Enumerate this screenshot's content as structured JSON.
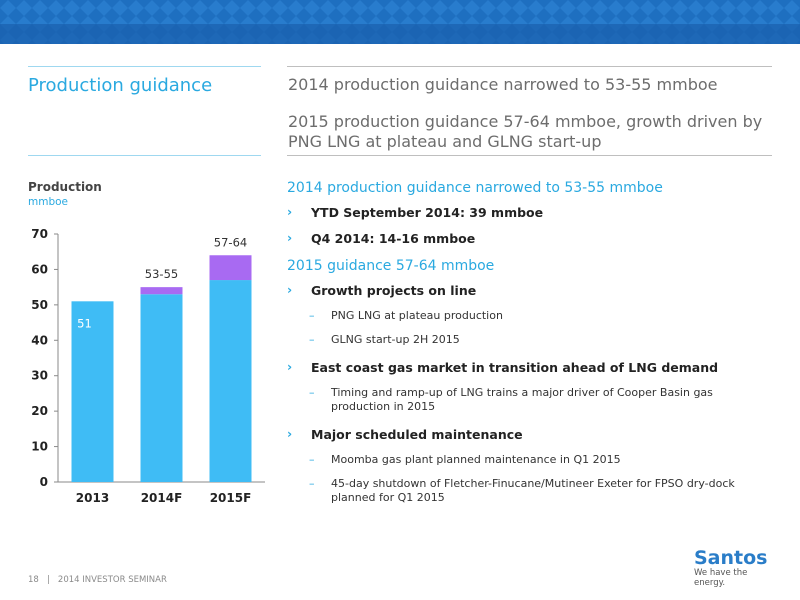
{
  "page": {
    "section_title": "Production guidance",
    "headline_1": "2014 production guidance narrowed to 53-55 mmboe",
    "headline_2": "2015 production guidance 57-64 mmboe, growth driven by PNG LNG at plateau and GLNG start-up"
  },
  "content": {
    "heading_2014": "2014 production guidance narrowed to 53-55 mmboe",
    "bullet_ytd": "YTD September 2014: 39 mmboe",
    "bullet_q4": "Q4 2014: 14-16 mmboe",
    "heading_2015": "2015 guidance 57-64 mmboe",
    "bullet_growth": "Growth projects on line",
    "sub_png": "PNG LNG at plateau production",
    "sub_glng": "GLNG start-up 2H 2015",
    "bullet_east": "East coast gas market in transition ahead of LNG demand",
    "sub_timing": "Timing and ramp-up of LNG trains a major driver of Cooper Basin gas production in 2015",
    "bullet_maint": "Major scheduled maintenance",
    "sub_moomba": "Moomba gas plant planned maintenance in Q1 2015",
    "sub_shutdown": "45-day shutdown of Fletcher-Finucane/Mutineer Exeter for FPSO dry-dock planned for  Q1 2015",
    "arrow_glyph": "›",
    "dash_glyph": "–"
  },
  "footer": {
    "page_number": "18",
    "separator": "|",
    "event": "2014 INVESTOR SEMINAR"
  },
  "logo": {
    "name": "Santos",
    "tagline": "We have the energy."
  },
  "colors": {
    "banner": "#1e6fc0",
    "accent": "#2aa9e0",
    "bar_base": "#3fbcf5",
    "bar_range": "#a86af2"
  },
  "chart_data": {
    "type": "bar",
    "stacked": true,
    "title": "Production",
    "ylabel": "mmboe",
    "categories": [
      "2013",
      "2014F",
      "2015F"
    ],
    "series": [
      {
        "values": [
          51,
          53,
          57
        ]
      },
      {
        "values": [
          0,
          2,
          7
        ]
      }
    ],
    "data_labels": [
      "51",
      "53-55",
      "57-64"
    ],
    "ylim": [
      0,
      70
    ],
    "yticks": [
      0,
      10,
      20,
      30,
      40,
      50,
      60,
      70
    ],
    "grid": false,
    "legend": "none"
  }
}
